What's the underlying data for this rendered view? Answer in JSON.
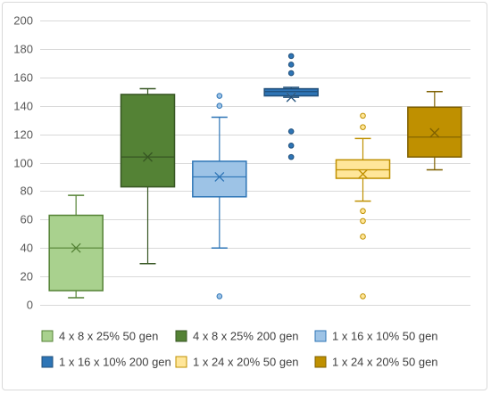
{
  "chart_data": {
    "type": "box",
    "title": "",
    "xlabel": "",
    "ylabel": "",
    "ylim": [
      0,
      200
    ],
    "ytick_step": 20,
    "grid": true,
    "legend_position": "bottom",
    "series": [
      {
        "name": "4 x 8 x 25% 50 gen",
        "color": "#a9d18e",
        "border": "#548235",
        "min": 5,
        "q1": 10,
        "median": 40,
        "q3": 63,
        "max": 77,
        "mean": 40,
        "outliers": []
      },
      {
        "name": "4 x 8 x 25% 200 gen",
        "color": "#548235",
        "border": "#375623",
        "min": 29,
        "q1": 83,
        "median": 104,
        "q3": 148,
        "max": 152,
        "mean": 104,
        "outliers": []
      },
      {
        "name": "1 x 16 x 10% 50 gen",
        "color": "#9dc3e6",
        "border": "#2e75b6",
        "min": 40,
        "q1": 76,
        "median": 90,
        "q3": 101,
        "max": 132,
        "mean": 90,
        "outliers": [
          6,
          140,
          147
        ]
      },
      {
        "name": "1 x 16 x 10% 200 gen",
        "color": "#2e75b6",
        "border": "#1f4e79",
        "min": 146,
        "q1": 147,
        "median": 150,
        "q3": 152,
        "max": 153,
        "mean": 146,
        "outliers": [
          104,
          112,
          122,
          163,
          169,
          175
        ]
      },
      {
        "name": "1 x 24 x 20% 50 gen",
        "color": "#ffe699",
        "border": "#bf9000",
        "min": 73,
        "q1": 89,
        "median": 95,
        "q3": 102,
        "max": 117,
        "mean": 92,
        "outliers": [
          6,
          48,
          59,
          66,
          125,
          133
        ]
      },
      {
        "name": "1 x 24 x 20% 50 gen",
        "color": "#bf9000",
        "border": "#7f6000",
        "min": 95,
        "q1": 104,
        "median": 118,
        "q3": 139,
        "max": 150,
        "mean": 121,
        "outliers": []
      }
    ]
  }
}
